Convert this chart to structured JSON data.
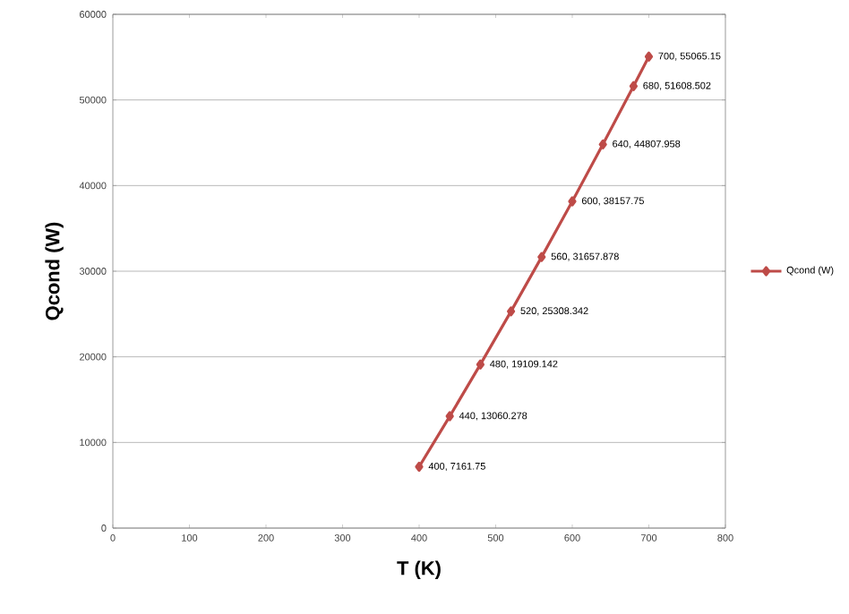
{
  "chart_data": {
    "type": "line",
    "xlabel": "T (K)",
    "ylabel": "Qcond (W)",
    "x": [
      400,
      440,
      480,
      520,
      560,
      600,
      640,
      680,
      700
    ],
    "series": [
      {
        "name": "Qcond (W)",
        "color": "#be4b48",
        "values": [
          7161.75,
          13060.278,
          19109.142,
          25308.342,
          31657.878,
          38157.75,
          44807.958,
          51608.502,
          55065.15
        ],
        "value_labels": [
          "400, 7161.75",
          "440, 13060.278",
          "480, 19109.142",
          "520, 25308.342",
          "560, 31657.878",
          "600, 38157.75",
          "640, 44807.958",
          "680, 51608.502",
          "700, 55065.15"
        ]
      }
    ],
    "xlim": [
      0,
      800
    ],
    "xticks": [
      0,
      100,
      200,
      300,
      400,
      500,
      600,
      700,
      800
    ],
    "ylim": [
      0,
      60000
    ],
    "yticks": [
      0,
      10000,
      20000,
      30000,
      40000,
      50000,
      60000
    ],
    "grid": "y",
    "legend": "right",
    "marker": "diamond",
    "line_style": "solid"
  }
}
